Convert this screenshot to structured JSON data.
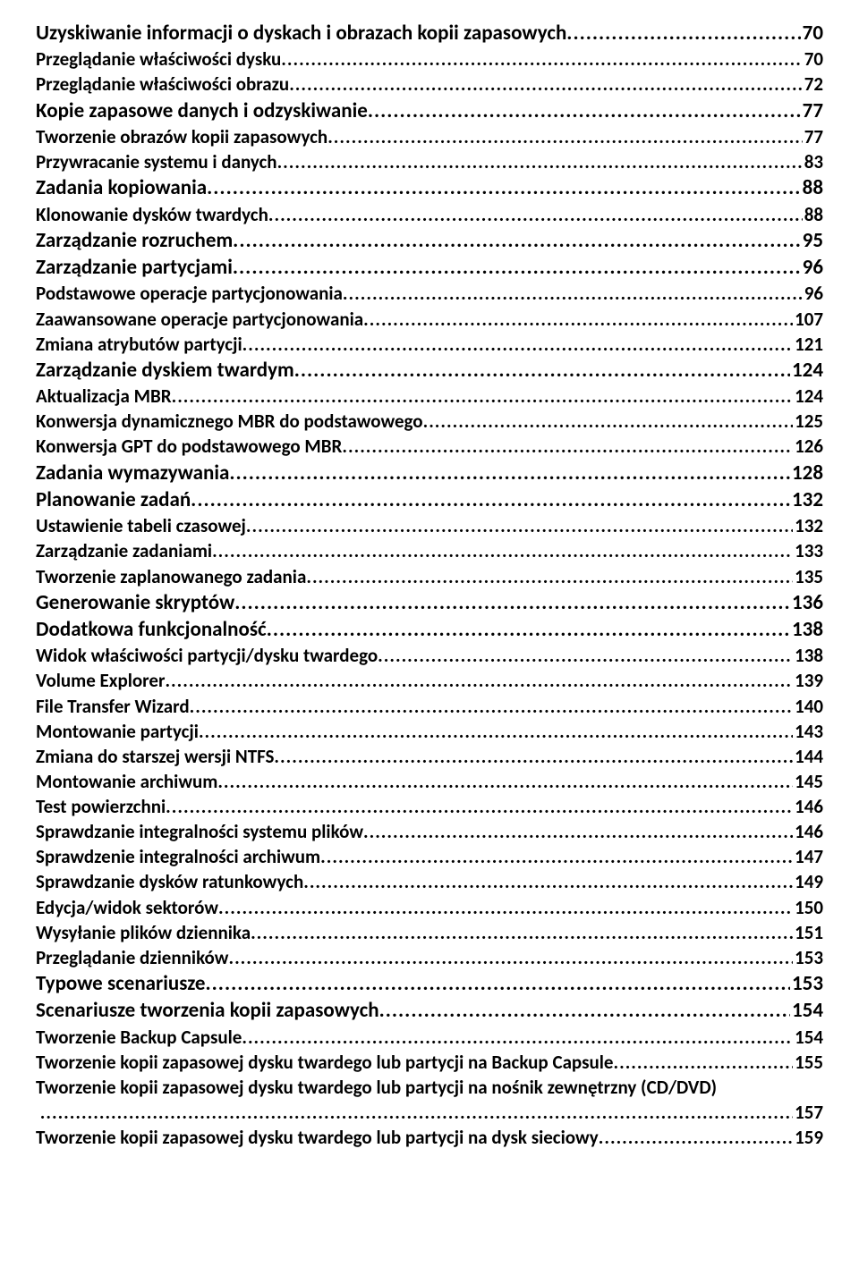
{
  "colors": {
    "text": "#000000",
    "background": "#ffffff"
  },
  "typography": {
    "font_family": "Calibri, Arial, sans-serif",
    "level0_size_pt": 17,
    "level1_size_pt": 15,
    "level2_size_pt": 14
  },
  "toc": [
    {
      "level": 0,
      "title": "Uzyskiwanie informacji o dyskach i obrazach kopii zapasowych",
      "page": "70"
    },
    {
      "level": 1,
      "title": "Przeglądanie właściwości dysku",
      "page": "70"
    },
    {
      "level": 1,
      "title": "Przeglądanie właściwości obrazu",
      "page": "72"
    },
    {
      "level": 0,
      "title": "Kopie zapasowe danych i odzyskiwanie",
      "page": "77"
    },
    {
      "level": 1,
      "title": "Tworzenie obrazów kopii zapasowych",
      "page": "77"
    },
    {
      "level": 1,
      "title": "Przywracanie systemu i danych",
      "page": "83"
    },
    {
      "level": 0,
      "title": "Zadania kopiowania",
      "page": "88"
    },
    {
      "level": 1,
      "title": "Klonowanie dysków twardych",
      "page": "88"
    },
    {
      "level": 0,
      "title": "Zarządzanie rozruchem",
      "page": "95"
    },
    {
      "level": 0,
      "title": "Zarządzanie partycjami",
      "page": "96"
    },
    {
      "level": 1,
      "title": "Podstawowe operacje partycjonowania",
      "page": "96"
    },
    {
      "level": 1,
      "title": "Zaawansowane operacje partycjonowania",
      "page": "107"
    },
    {
      "level": 1,
      "title": "Zmiana atrybutów partycji",
      "page": "121"
    },
    {
      "level": 0,
      "title": "Zarządzanie dyskiem twardym",
      "page": "124"
    },
    {
      "level": 1,
      "title": "Aktualizacja MBR",
      "page": "124"
    },
    {
      "level": 1,
      "title": "Konwersja dynamicznego MBR do podstawowego",
      "page": "125"
    },
    {
      "level": 1,
      "title": "Konwersja GPT do podstawowego MBR",
      "page": "126"
    },
    {
      "level": 0,
      "title": "Zadania wymazywania",
      "page": "128"
    },
    {
      "level": 0,
      "title": "Planowanie zadań",
      "page": "132"
    },
    {
      "level": 1,
      "title": "Ustawienie tabeli czasowej",
      "page": "132"
    },
    {
      "level": 1,
      "title": "Zarządzanie zadaniami",
      "page": "133"
    },
    {
      "level": 1,
      "title": "Tworzenie zaplanowanego zadania",
      "page": "135"
    },
    {
      "level": 0,
      "title": "Generowanie skryptów",
      "page": "136"
    },
    {
      "level": 0,
      "title": "Dodatkowa funkcjonalność",
      "page": "138"
    },
    {
      "level": 1,
      "title": "Widok właściwości partycji/dysku twardego",
      "page": "138"
    },
    {
      "level": 1,
      "title": "Volume Explorer",
      "page": "139"
    },
    {
      "level": 1,
      "title": "File Transfer Wizard",
      "page": "140"
    },
    {
      "level": 1,
      "title": "Montowanie partycji",
      "page": "143"
    },
    {
      "level": 1,
      "title": "Zmiana do starszej wersji NTFS",
      "page": "144"
    },
    {
      "level": 1,
      "title": "Montowanie archiwum",
      "page": "145"
    },
    {
      "level": 1,
      "title": "Test powierzchni",
      "page": "146"
    },
    {
      "level": 1,
      "title": "Sprawdzanie integralności systemu plików",
      "page": "146"
    },
    {
      "level": 1,
      "title": "Sprawdzenie integralności archiwum",
      "page": "147"
    },
    {
      "level": 1,
      "title": "Sprawdzanie dysków ratunkowych",
      "page": "149"
    },
    {
      "level": 1,
      "title": "Edycja/widok sektorów",
      "page": "150"
    },
    {
      "level": 1,
      "title": "Wysyłanie plików dziennika",
      "page": "151"
    },
    {
      "level": 1,
      "title": "Przeglądanie dzienników",
      "page": "153"
    },
    {
      "level": 0,
      "title": "Typowe scenariusze",
      "page": "153"
    },
    {
      "level": 0,
      "title": "Scenariusze tworzenia kopii zapasowych",
      "page": "154"
    },
    {
      "level": 1,
      "title": "Tworzenie Backup Capsule",
      "page": "154"
    },
    {
      "level": 1,
      "title": "Tworzenie kopii zapasowej dysku twardego lub partycji na Backup Capsule",
      "page": "155"
    },
    {
      "level": 1,
      "title": "Tworzenie kopii zapasowej dysku twardego lub partycji na nośnik zewnętrzny (CD/DVD)",
      "page": "157",
      "wrap": true
    },
    {
      "level": 1,
      "title": "Tworzenie kopii zapasowej dysku twardego lub partycji na dysk sieciowy",
      "page": "159"
    }
  ]
}
